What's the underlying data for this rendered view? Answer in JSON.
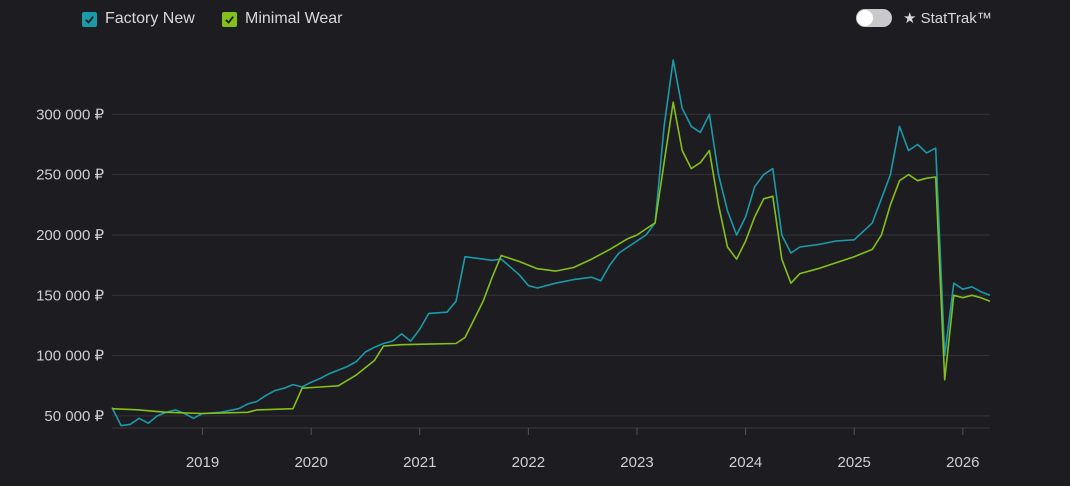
{
  "legend": {
    "items": [
      {
        "label": "Factory New",
        "color": "#1b9aaa",
        "checked": true
      },
      {
        "label": "Minimal Wear",
        "color": "#84c01a",
        "checked": true
      }
    ]
  },
  "toggle": {
    "label": "★ StatTrak™",
    "on": false,
    "icon": "toggle-switch"
  },
  "chart_data": {
    "type": "line",
    "title": "",
    "xlabel": "",
    "ylabel": "",
    "x_ticks": [
      "2019",
      "2020",
      "2021",
      "2022",
      "2023",
      "2024",
      "2025",
      "2026"
    ],
    "y_ticks": [
      "50 000 ₽",
      "100 000 ₽",
      "150 000 ₽",
      "200 000 ₽",
      "250 000 ₽",
      "300 000 ₽"
    ],
    "y_tick_values": [
      50000,
      100000,
      150000,
      200000,
      250000,
      300000
    ],
    "xlim": [
      "2018-03",
      "2026-04"
    ],
    "ylim": [
      40000,
      345000
    ],
    "grid": true,
    "series": [
      {
        "name": "Factory New",
        "color": "#1b9aaa",
        "points": [
          [
            "2018-03",
            57000
          ],
          [
            "2018-04",
            42000
          ],
          [
            "2018-05",
            43000
          ],
          [
            "2018-06",
            48000
          ],
          [
            "2018-07",
            44000
          ],
          [
            "2018-08",
            50000
          ],
          [
            "2018-09",
            53000
          ],
          [
            "2018-10",
            55000
          ],
          [
            "2018-11",
            52000
          ],
          [
            "2018-12",
            48000
          ],
          [
            "2019-01",
            52000
          ],
          [
            "2019-03",
            53000
          ],
          [
            "2019-05",
            56000
          ],
          [
            "2019-06",
            60000
          ],
          [
            "2019-07",
            62000
          ],
          [
            "2019-08",
            67000
          ],
          [
            "2019-09",
            71000
          ],
          [
            "2019-10",
            73000
          ],
          [
            "2019-11",
            76000
          ],
          [
            "2019-12",
            74000
          ],
          [
            "2020-01",
            78000
          ],
          [
            "2020-02",
            81000
          ],
          [
            "2020-03",
            85000
          ],
          [
            "2020-04",
            88000
          ],
          [
            "2020-05",
            91000
          ],
          [
            "2020-06",
            95000
          ],
          [
            "2020-07",
            103000
          ],
          [
            "2020-08",
            107000
          ],
          [
            "2020-09",
            110000
          ],
          [
            "2020-10",
            112000
          ],
          [
            "2020-11",
            118000
          ],
          [
            "2020-12",
            112000
          ],
          [
            "2021-01",
            122000
          ],
          [
            "2021-02",
            135000
          ],
          [
            "2021-04",
            136000
          ],
          [
            "2021-05",
            145000
          ],
          [
            "2021-06",
            182000
          ],
          [
            "2021-07",
            181000
          ],
          [
            "2021-09",
            179000
          ],
          [
            "2021-10",
            180000
          ],
          [
            "2021-12",
            167000
          ],
          [
            "2022-01",
            158000
          ],
          [
            "2022-02",
            156000
          ],
          [
            "2022-04",
            160000
          ],
          [
            "2022-06",
            163000
          ],
          [
            "2022-08",
            165000
          ],
          [
            "2022-09",
            162000
          ],
          [
            "2022-10",
            175000
          ],
          [
            "2022-11",
            185000
          ],
          [
            "2023-01",
            195000
          ],
          [
            "2023-02",
            200000
          ],
          [
            "2023-03",
            210000
          ],
          [
            "2023-04",
            290000
          ],
          [
            "2023-05",
            345000
          ],
          [
            "2023-06",
            305000
          ],
          [
            "2023-07",
            290000
          ],
          [
            "2023-08",
            285000
          ],
          [
            "2023-09",
            300000
          ],
          [
            "2023-10",
            250000
          ],
          [
            "2023-11",
            220000
          ],
          [
            "2023-12",
            200000
          ],
          [
            "2024-01",
            215000
          ],
          [
            "2024-02",
            240000
          ],
          [
            "2024-03",
            250000
          ],
          [
            "2024-04",
            255000
          ],
          [
            "2024-05",
            200000
          ],
          [
            "2024-06",
            185000
          ],
          [
            "2024-07",
            190000
          ],
          [
            "2024-09",
            192000
          ],
          [
            "2024-11",
            195000
          ],
          [
            "2025-01",
            196000
          ],
          [
            "2025-03",
            210000
          ],
          [
            "2025-04",
            230000
          ],
          [
            "2025-05",
            250000
          ],
          [
            "2025-06",
            290000
          ],
          [
            "2025-07",
            270000
          ],
          [
            "2025-08",
            275000
          ],
          [
            "2025-09",
            268000
          ],
          [
            "2025-10",
            272000
          ],
          [
            "2025-11",
            100000
          ],
          [
            "2025-12",
            160000
          ],
          [
            "2026-01",
            155000
          ],
          [
            "2026-02",
            157000
          ],
          [
            "2026-03",
            153000
          ],
          [
            "2026-04",
            150000
          ]
        ]
      },
      {
        "name": "Minimal Wear",
        "color": "#84c01a",
        "points": [
          [
            "2018-03",
            56000
          ],
          [
            "2018-06",
            55000
          ],
          [
            "2018-09",
            53000
          ],
          [
            "2019-01",
            52000
          ],
          [
            "2019-06",
            53000
          ],
          [
            "2019-07",
            55000
          ],
          [
            "2019-09",
            55500
          ],
          [
            "2019-11",
            56000
          ],
          [
            "2019-12",
            73000
          ],
          [
            "2020-02",
            74000
          ],
          [
            "2020-04",
            75000
          ],
          [
            "2020-06",
            84000
          ],
          [
            "2020-08",
            96000
          ],
          [
            "2020-09",
            108000
          ],
          [
            "2020-11",
            109000
          ],
          [
            "2021-02",
            109500
          ],
          [
            "2021-05",
            110000
          ],
          [
            "2021-06",
            115000
          ],
          [
            "2021-07",
            130000
          ],
          [
            "2021-08",
            145000
          ],
          [
            "2021-09",
            165000
          ],
          [
            "2021-10",
            183000
          ],
          [
            "2021-12",
            178000
          ],
          [
            "2022-02",
            172000
          ],
          [
            "2022-04",
            170000
          ],
          [
            "2022-06",
            173000
          ],
          [
            "2022-08",
            180000
          ],
          [
            "2022-10",
            188000
          ],
          [
            "2022-12",
            197000
          ],
          [
            "2023-01",
            200000
          ],
          [
            "2023-02",
            205000
          ],
          [
            "2023-03",
            210000
          ],
          [
            "2023-04",
            260000
          ],
          [
            "2023-05",
            310000
          ],
          [
            "2023-06",
            270000
          ],
          [
            "2023-07",
            255000
          ],
          [
            "2023-08",
            260000
          ],
          [
            "2023-09",
            270000
          ],
          [
            "2023-10",
            225000
          ],
          [
            "2023-11",
            190000
          ],
          [
            "2023-12",
            180000
          ],
          [
            "2024-01",
            195000
          ],
          [
            "2024-02",
            215000
          ],
          [
            "2024-03",
            230000
          ],
          [
            "2024-04",
            232000
          ],
          [
            "2024-05",
            180000
          ],
          [
            "2024-06",
            160000
          ],
          [
            "2024-07",
            168000
          ],
          [
            "2024-09",
            172000
          ],
          [
            "2024-11",
            177000
          ],
          [
            "2025-01",
            182000
          ],
          [
            "2025-03",
            188000
          ],
          [
            "2025-04",
            200000
          ],
          [
            "2025-05",
            225000
          ],
          [
            "2025-06",
            245000
          ],
          [
            "2025-07",
            250000
          ],
          [
            "2025-08",
            245000
          ],
          [
            "2025-09",
            247000
          ],
          [
            "2025-10",
            248000
          ],
          [
            "2025-11",
            80000
          ],
          [
            "2025-12",
            150000
          ],
          [
            "2026-01",
            148000
          ],
          [
            "2026-02",
            150000
          ],
          [
            "2026-03",
            148000
          ],
          [
            "2026-04",
            145000
          ]
        ]
      }
    ]
  }
}
